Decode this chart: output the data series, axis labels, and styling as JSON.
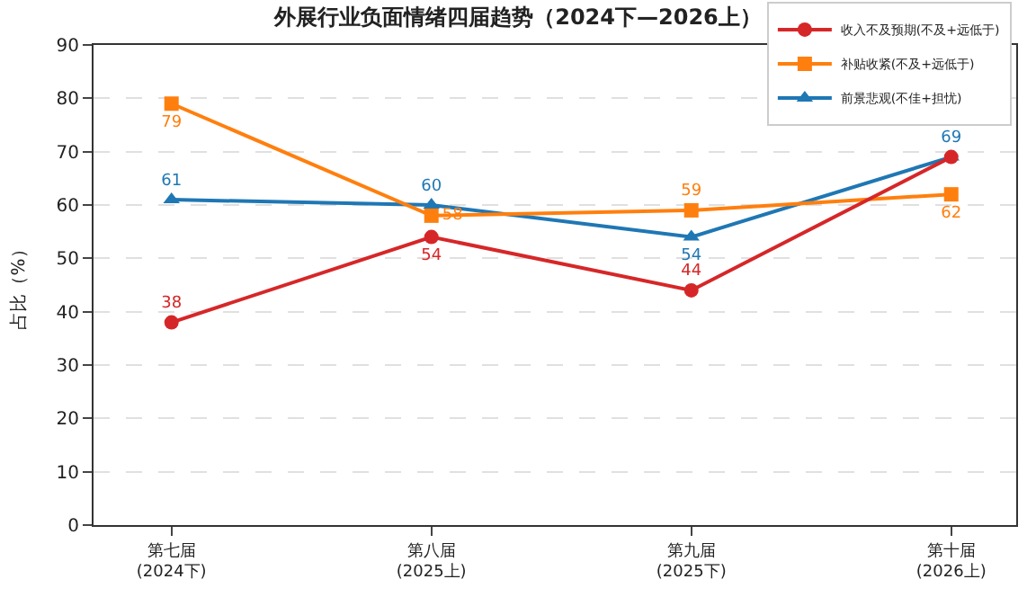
{
  "chart_data": {
    "type": "line",
    "title": "外展行业负面情绪四届趋势（2024下—2026上）",
    "ylabel": "占比（%）",
    "categories": [
      "第七届\n(2024下)",
      "第八届\n(2025上)",
      "第九届\n(2025下)",
      "第十届\n(2026上)"
    ],
    "series": [
      {
        "name": "收入不及预期(不及+远低于)",
        "color": "#d62728",
        "marker": "circle",
        "values": [
          38,
          54,
          44,
          69
        ],
        "value_labels": [
          "38",
          "54",
          "44",
          null
        ]
      },
      {
        "name": "补贴收紧(不及+远低于)",
        "color": "#ff7f0e",
        "marker": "square",
        "values": [
          79,
          58,
          59,
          62
        ],
        "value_labels": [
          "79",
          "58",
          "59",
          "62"
        ]
      },
      {
        "name": "前景悲观(不佳+担忧)",
        "color": "#1f77b4",
        "marker": "triangle",
        "values": [
          61,
          60,
          54,
          69
        ],
        "value_labels": [
          "61",
          "60",
          "54",
          "69"
        ]
      }
    ],
    "ylim": [
      0,
      90
    ],
    "yticks": [
      0,
      10,
      20,
      30,
      40,
      50,
      60,
      70,
      80,
      90
    ],
    "grid": "y",
    "legend": "top right",
    "line_style": "solid"
  }
}
